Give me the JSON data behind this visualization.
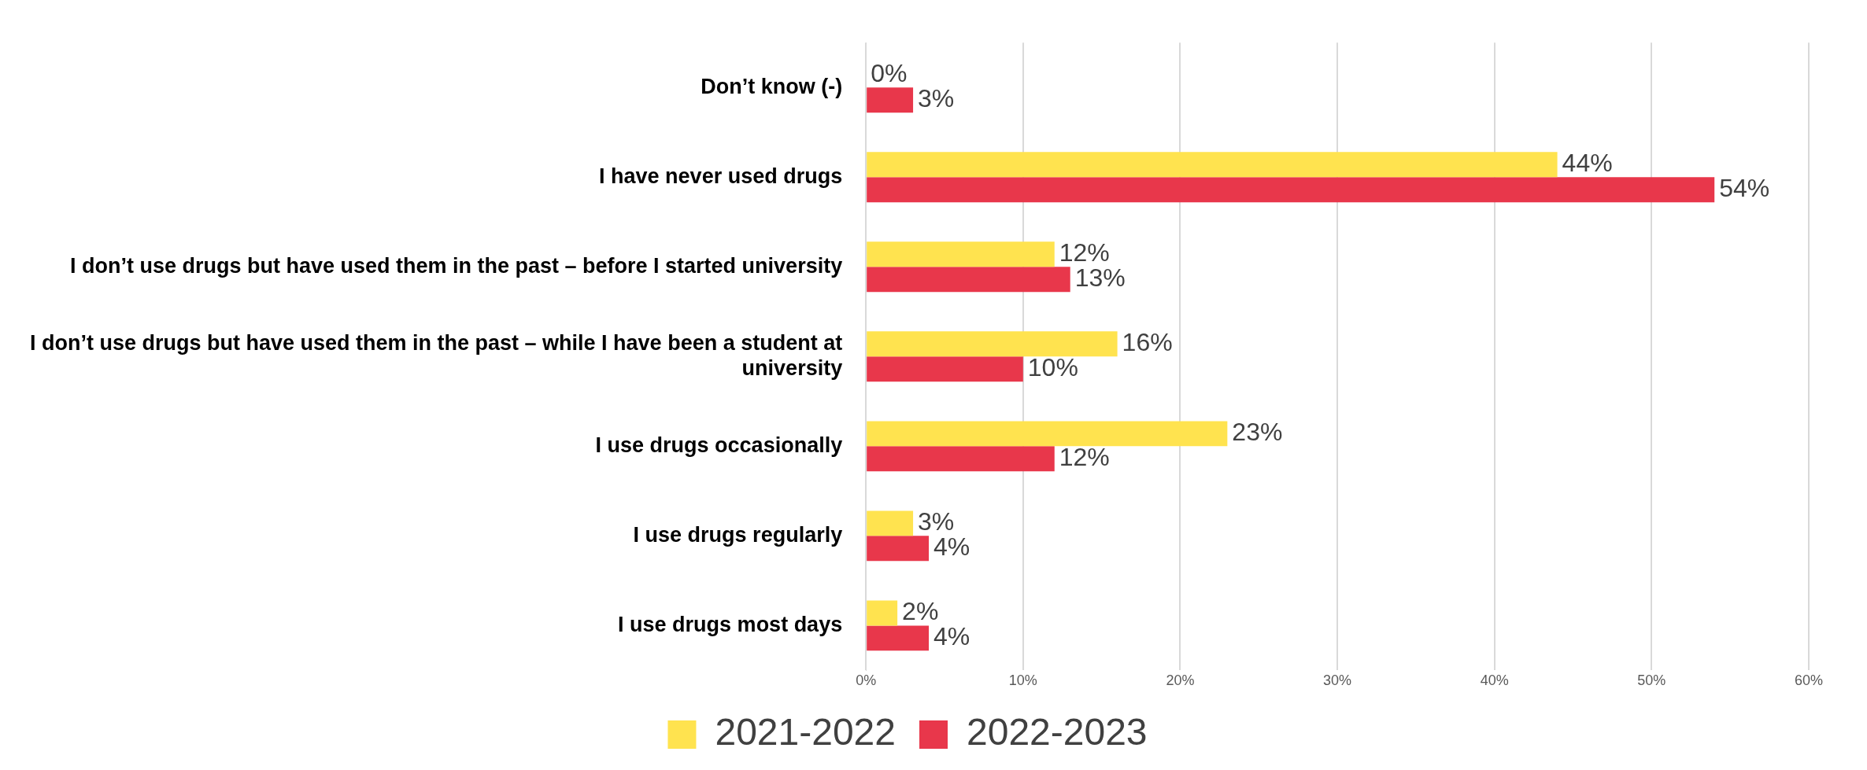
{
  "chart_data": {
    "type": "bar",
    "orientation": "horizontal",
    "categories": [
      "Don’t know (-)",
      "I have never used drugs",
      "I don’t use drugs but have used them in the past – before I started university",
      "I don’t use drugs but have used them in the past – while I have been a student at university",
      "I use drugs occasionally",
      "I use drugs regularly",
      "I use drugs most days"
    ],
    "series": [
      {
        "name": "2021-2022",
        "color": "#ffe34f",
        "values": [
          0,
          44,
          12,
          16,
          23,
          3,
          2
        ],
        "value_labels": [
          "0%",
          "44%",
          "12%",
          "16%",
          "23%",
          "3%",
          "2%"
        ]
      },
      {
        "name": "2022-2023",
        "color": "#e8374b",
        "values": [
          3,
          54,
          13,
          10,
          12,
          4,
          4
        ],
        "value_labels": [
          "3%",
          "54%",
          "13%",
          "10%",
          "12%",
          "4%",
          "4%"
        ]
      }
    ],
    "xlim": [
      0,
      60
    ],
    "xticks": [
      {
        "value": 0,
        "label": "0%"
      },
      {
        "value": 10,
        "label": "10%"
      },
      {
        "value": 20,
        "label": "20%"
      },
      {
        "value": 30,
        "label": "30%"
      },
      {
        "value": 40,
        "label": "40%"
      },
      {
        "value": 50,
        "label": "50%"
      },
      {
        "value": 60,
        "label": "60%"
      }
    ],
    "grid": "x",
    "legend": "bottom"
  }
}
